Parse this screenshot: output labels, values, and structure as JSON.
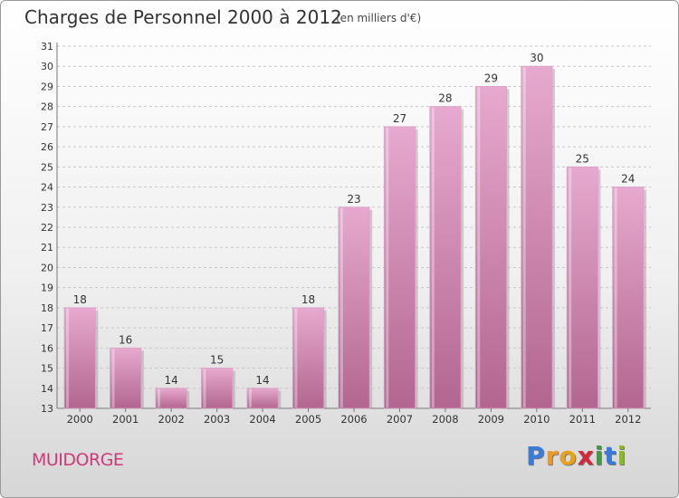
{
  "header": {
    "title": "Charges de Personnel 2000 à 2012",
    "subtitle": "(en milliers d'€)"
  },
  "footer": {
    "commune": "MUIDORGE",
    "logo": {
      "text": "Proxiti",
      "letters": [
        "P",
        "r",
        "o",
        "x",
        "i",
        "t",
        "i"
      ]
    }
  },
  "colors": {
    "bar_top": "#e7a9cf",
    "bar_bottom": "#b2668f",
    "commune": "#cc3a7a",
    "logo": [
      "#3a7ad8",
      "#f39a1e",
      "#e8a21a",
      "#d6263a",
      "#3aa03a",
      "#3a7ad8",
      "#8bb82e"
    ]
  },
  "chart_data": {
    "type": "bar",
    "categories": [
      "2000",
      "2001",
      "2002",
      "2003",
      "2004",
      "2005",
      "2006",
      "2007",
      "2008",
      "2009",
      "2010",
      "2011",
      "2012"
    ],
    "values": [
      18,
      16,
      14,
      15,
      14,
      18,
      23,
      27,
      28,
      29,
      30,
      25,
      24
    ],
    "title": "Charges de Personnel 2000 à 2012",
    "ylabel": "",
    "xlabel": "",
    "ylim": [
      13,
      31
    ],
    "yticks": [
      13,
      14,
      15,
      16,
      17,
      18,
      19,
      20,
      21,
      22,
      23,
      24,
      25,
      26,
      27,
      28,
      29,
      30,
      31
    ],
    "grid": true
  }
}
